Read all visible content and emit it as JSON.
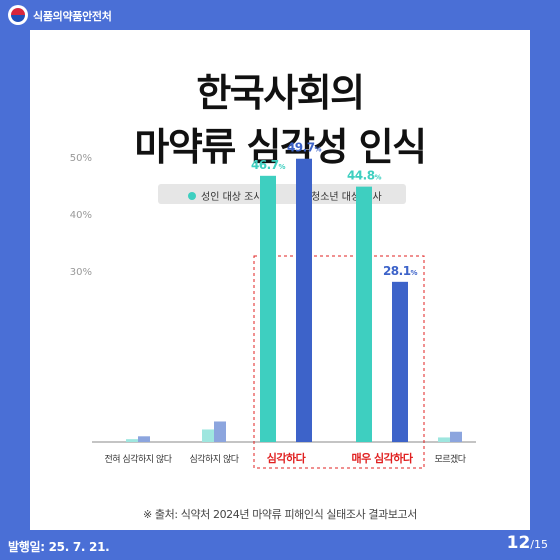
{
  "header": {
    "org_name": "식품의약품안전처"
  },
  "title": {
    "line1": "한국사회의",
    "line2": "마약류 심각성 인식"
  },
  "legend": [
    {
      "label": "성인 대상 조사",
      "color": "#3ecfc0"
    },
    {
      "label": "청소년 대상 조사",
      "color": "#3d63c9"
    }
  ],
  "chart_data": {
    "type": "bar",
    "categories": [
      "전혀 심각하지 않다",
      "심각하지 않다",
      "심각하다",
      "매우 심각하다",
      "모르겠다"
    ],
    "highlighted_categories": [
      "심각하다",
      "매우 심각하다"
    ],
    "series": [
      {
        "name": "성인 대상 조사",
        "color": "#3ecfc0",
        "values": [
          0.5,
          2.2,
          46.7,
          44.8,
          0.8
        ]
      },
      {
        "name": "청소년 대상 조사",
        "color": "#3d63c9",
        "values": [
          1.0,
          3.6,
          49.7,
          28.1,
          1.8
        ]
      }
    ],
    "data_labels": [
      [
        null,
        null,
        "46.7",
        "44.8",
        null
      ],
      [
        null,
        null,
        "49.7",
        "28.1",
        null
      ]
    ],
    "label_unit": "%",
    "yticks": [
      30,
      40,
      50
    ],
    "ytick_labels": [
      "30%",
      "40%",
      "50%"
    ],
    "ylim": [
      0,
      50
    ],
    "axis_break": true,
    "grid": false,
    "highlight_box": "dashed red",
    "highlight_label_color": "#e02020"
  },
  "footer": {
    "source": "※ 출처: 식약처 2024년 마약류 피해인식 실태조사 결과보고서",
    "publish_date": "발행일: 25. 7. 21.",
    "page_current": "12",
    "page_total": "/15"
  }
}
